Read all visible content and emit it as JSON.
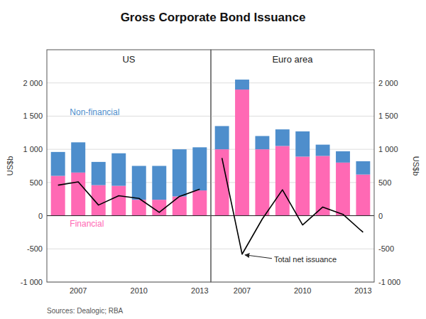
{
  "chart_data": [
    {
      "type": "bar",
      "stacked": true,
      "grid": true,
      "title": "Gross Corporate Bond Issuance",
      "subtitle": "US",
      "ylabel": "US$b",
      "categories": [
        null,
        "2007",
        null,
        null,
        "2010",
        null,
        null,
        "2013"
      ],
      "series": [
        {
          "name": "Financial",
          "color": "#FF69B4",
          "values": [
            600,
            650,
            460,
            450,
            240,
            240,
            290,
            380
          ]
        },
        {
          "name": "Non-financial",
          "color": "#4E8ECC",
          "values": [
            360,
            455,
            350,
            490,
            510,
            510,
            710,
            650
          ]
        },
        {
          "type": "line",
          "color": "#000000",
          "values": [
            460,
            510,
            160,
            300,
            260,
            50,
            290,
            400
          ]
        }
      ],
      "ylim": [
        -1000,
        2500
      ],
      "yticks": [
        {
          "value": -1000,
          "label": "-1 000"
        },
        -500,
        0,
        500,
        {
          "value": 1000,
          "label": "1 000"
        },
        {
          "value": 1500,
          "label": "1 500"
        },
        {
          "value": 2000,
          "label": "2 000"
        }
      ],
      "annotations": [
        {
          "text": "Sources: Dealogic; RBA"
        }
      ]
    },
    {
      "type": "bar",
      "stacked": true,
      "grid": true,
      "subtitle": "Euro area",
      "ylabel": "US$b",
      "categories": [
        null,
        "2007",
        null,
        null,
        "2010",
        null,
        null,
        "2013"
      ],
      "series": [
        {
          "color": "#FF69B4",
          "values": [
            1000,
            1900,
            1000,
            1050,
            890,
            900,
            800,
            620
          ]
        },
        {
          "color": "#4E8ECC",
          "values": [
            350,
            150,
            200,
            250,
            380,
            170,
            170,
            200
          ]
        },
        {
          "type": "line",
          "color": "#000000",
          "values": [
            870,
            -580,
            -50,
            390,
            -140,
            130,
            20,
            -250
          ]
        }
      ],
      "ylim": [
        -1000,
        2500
      ],
      "yticks": [
        {
          "value": -1000,
          "label": "-1 000"
        },
        -500,
        0,
        500,
        {
          "value": 1000,
          "label": "1 000"
        },
        {
          "value": 1500,
          "label": "1 500"
        },
        {
          "value": 2000,
          "label": "2 000"
        }
      ],
      "annotations": [
        {
          "text": "Total net issuance",
          "x": "2007",
          "y": -580
        }
      ]
    }
  ]
}
